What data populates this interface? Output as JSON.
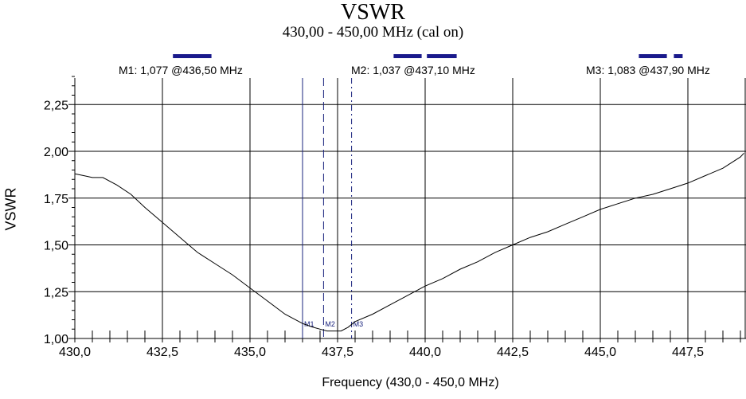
{
  "chart_data": {
    "type": "line",
    "title": "VSWR",
    "subtitle": "430,00 - 450,00 MHz (cal on)",
    "xlabel": "Frequency (430,0 - 450,0 MHz)",
    "ylabel": "VSWR",
    "xlim": [
      430.0,
      449.1
    ],
    "ylim": [
      1.0,
      2.4
    ],
    "x_ticks": [
      "430,0",
      "432,5",
      "435,0",
      "437,5",
      "440,0",
      "442,5",
      "445,0",
      "447,5"
    ],
    "y_ticks": [
      "1,00",
      "1,25",
      "1,50",
      "1,75",
      "2,00",
      "2,25"
    ],
    "grid": true,
    "series": [
      {
        "x": [
          430.0,
          430.25,
          430.5,
          430.8,
          431.2,
          431.6,
          432.0,
          432.5,
          433.0,
          433.5,
          434.0,
          434.5,
          435.0,
          435.5,
          436.0,
          436.5,
          436.8,
          437.0,
          437.2,
          437.4,
          437.6,
          437.8,
          438.0,
          438.5,
          439.0,
          439.5,
          440.0,
          440.5,
          441.0,
          441.5,
          442.0,
          442.5,
          443.0,
          443.5,
          444.0,
          444.5,
          445.0,
          445.5,
          446.0,
          446.5,
          447.0,
          447.5,
          448.0,
          448.5,
          449.0,
          449.1
        ],
        "y": [
          1.88,
          1.87,
          1.86,
          1.86,
          1.82,
          1.77,
          1.7,
          1.62,
          1.54,
          1.46,
          1.4,
          1.34,
          1.27,
          1.2,
          1.13,
          1.08,
          1.06,
          1.05,
          1.04,
          1.04,
          1.04,
          1.06,
          1.09,
          1.13,
          1.18,
          1.23,
          1.28,
          1.32,
          1.37,
          1.41,
          1.46,
          1.5,
          1.54,
          1.57,
          1.61,
          1.65,
          1.69,
          1.72,
          1.75,
          1.77,
          1.8,
          1.83,
          1.87,
          1.91,
          1.97,
          1.99
        ]
      }
    ],
    "markers": [
      {
        "id": "M1",
        "label": "M1",
        "freq": 436.5,
        "style": "solid",
        "text": "M1: 1,077  @436,50 MHz",
        "bar_segments": [
          [
            432.8,
            433.9
          ]
        ]
      },
      {
        "id": "M2",
        "label": "M2",
        "freq": 437.1,
        "style": "dashed",
        "text": "M2: 1,037  @437,10 MHz",
        "bar_segments": [
          [
            439.1,
            439.9
          ],
          [
            440.05,
            440.9
          ]
        ]
      },
      {
        "id": "M3",
        "label": "M3",
        "freq": 437.9,
        "style": "dashdot",
        "text": "M3: 1,083  @437,90 MHz",
        "bar_segments": [
          [
            446.1,
            446.9
          ],
          [
            447.1,
            447.35
          ]
        ]
      }
    ],
    "center_line_freq": 437.5,
    "colors": {
      "curve": "#000000",
      "marker": "#1a237e",
      "marker_bar": "#1a1a8c",
      "grid": "#000000"
    }
  }
}
